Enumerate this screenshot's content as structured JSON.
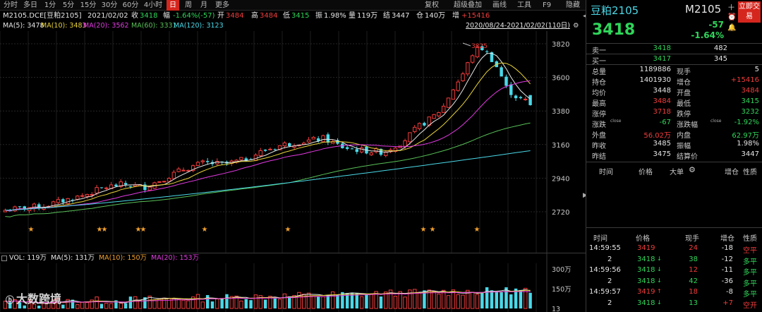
{
  "toolbar": {
    "periods": [
      "分时",
      "多日",
      "1分",
      "5分",
      "15分",
      "30分",
      "60分",
      "4小时",
      "日",
      "周",
      "月",
      "更多"
    ],
    "active": "日",
    "menus": [
      "复权",
      "超级叠加",
      "画线",
      "工具",
      "F9",
      "隐藏"
    ]
  },
  "info": {
    "symbol": "M2105.DCE[豆粕2105]",
    "date": "2021/02/02",
    "close_lbl": "收",
    "close": "3418",
    "chg_lbl": "幅",
    "chg": "-1.64%(-57)",
    "open_lbl": "开",
    "open": "3484",
    "high_lbl": "高",
    "high": "3484",
    "low_lbl": "低",
    "low": "3415",
    "amp_lbl": "振",
    "amp": "1.98%",
    "vol_lbl": "量",
    "vol": "119万",
    "settle_lbl": "结",
    "settle": "3447",
    "oi_lbl": "仓",
    "oi": "140万",
    "oichg_lbl": "增",
    "oichg": "+15416"
  },
  "ma": {
    "ma5": "MA(5): 3478",
    "ma10": "MA(10): 3483",
    "ma20": "MA(20): 3562",
    "ma60": "MA(60): 3331",
    "ma120": "MA(120): 3123",
    "range": "2020/08/24-2021/02/02(110日)"
  },
  "vol": {
    "label": "VOL: 119万",
    "ma5": "MA(5): 131万",
    "ma10": "MA(10): 150万",
    "ma20": "MA(20): 153万",
    "ticks": [
      "300万",
      "150万",
      "13"
    ]
  },
  "colors": {
    "up": "#f03c3c",
    "down": "#4ad8e8",
    "ma5": "#e6e6e6",
    "ma10": "#e8d23a",
    "ma20": "#e23ae2",
    "ma60": "#58c058",
    "ma120": "#4ad8e8",
    "active": "#d5261e",
    "star": "#f0a030"
  },
  "yticks": [
    "3820",
    "3600",
    "3380",
    "3160",
    "2940",
    "2720"
  ],
  "peak_label": "3825",
  "watermark": "大数跨境",
  "right": {
    "name": "豆粕2105",
    "code": "M2105",
    "price": "3418",
    "chg": "-57",
    "pct": "-1.64%",
    "trade_btn": "立即交易",
    "ask_lbl": "卖一",
    "ask": "3418",
    "ask_vol": "482",
    "bid_lbl": "买一",
    "bid": "3417",
    "bid_vol": "345",
    "stats": [
      [
        "总量",
        "1189886",
        "现手",
        "5"
      ],
      [
        "持仓",
        "1401930",
        "增仓",
        "+15416"
      ],
      [
        "均价",
        "3448",
        "开盘",
        "3484"
      ],
      [
        "最高",
        "3484",
        "最低",
        "3415"
      ],
      [
        "涨停",
        "3718",
        "跌停",
        "3232"
      ],
      [
        "涨跌",
        "-67",
        "涨跌幅",
        "-1.92%"
      ],
      [
        "外盘",
        "56.02万",
        "内盘",
        "62.97万"
      ],
      [
        "昨收",
        "3485",
        "振幅",
        "1.98%"
      ],
      [
        "昨结",
        "3475",
        "结算价",
        "3447"
      ]
    ],
    "close_tag": "close",
    "tick_headers": [
      "时间",
      "价格",
      "大单",
      "增仓",
      "性质"
    ],
    "trade_headers": [
      "时间",
      "价格",
      "现手",
      "增仓",
      "性质"
    ],
    "trades": [
      [
        "14:59:55",
        "3419",
        "24",
        "-18",
        "空平"
      ],
      [
        "2",
        "3418",
        "38",
        "-12",
        "多平"
      ],
      [
        "14:59:56",
        "3418",
        "12",
        "-11",
        "多平"
      ],
      [
        "2",
        "3418",
        "42",
        "-36",
        "多平"
      ],
      [
        "14:59:57",
        "3419",
        "18",
        "-8",
        "多平"
      ],
      [
        "2",
        "3418",
        "13",
        "+7",
        "空开"
      ]
    ]
  }
}
